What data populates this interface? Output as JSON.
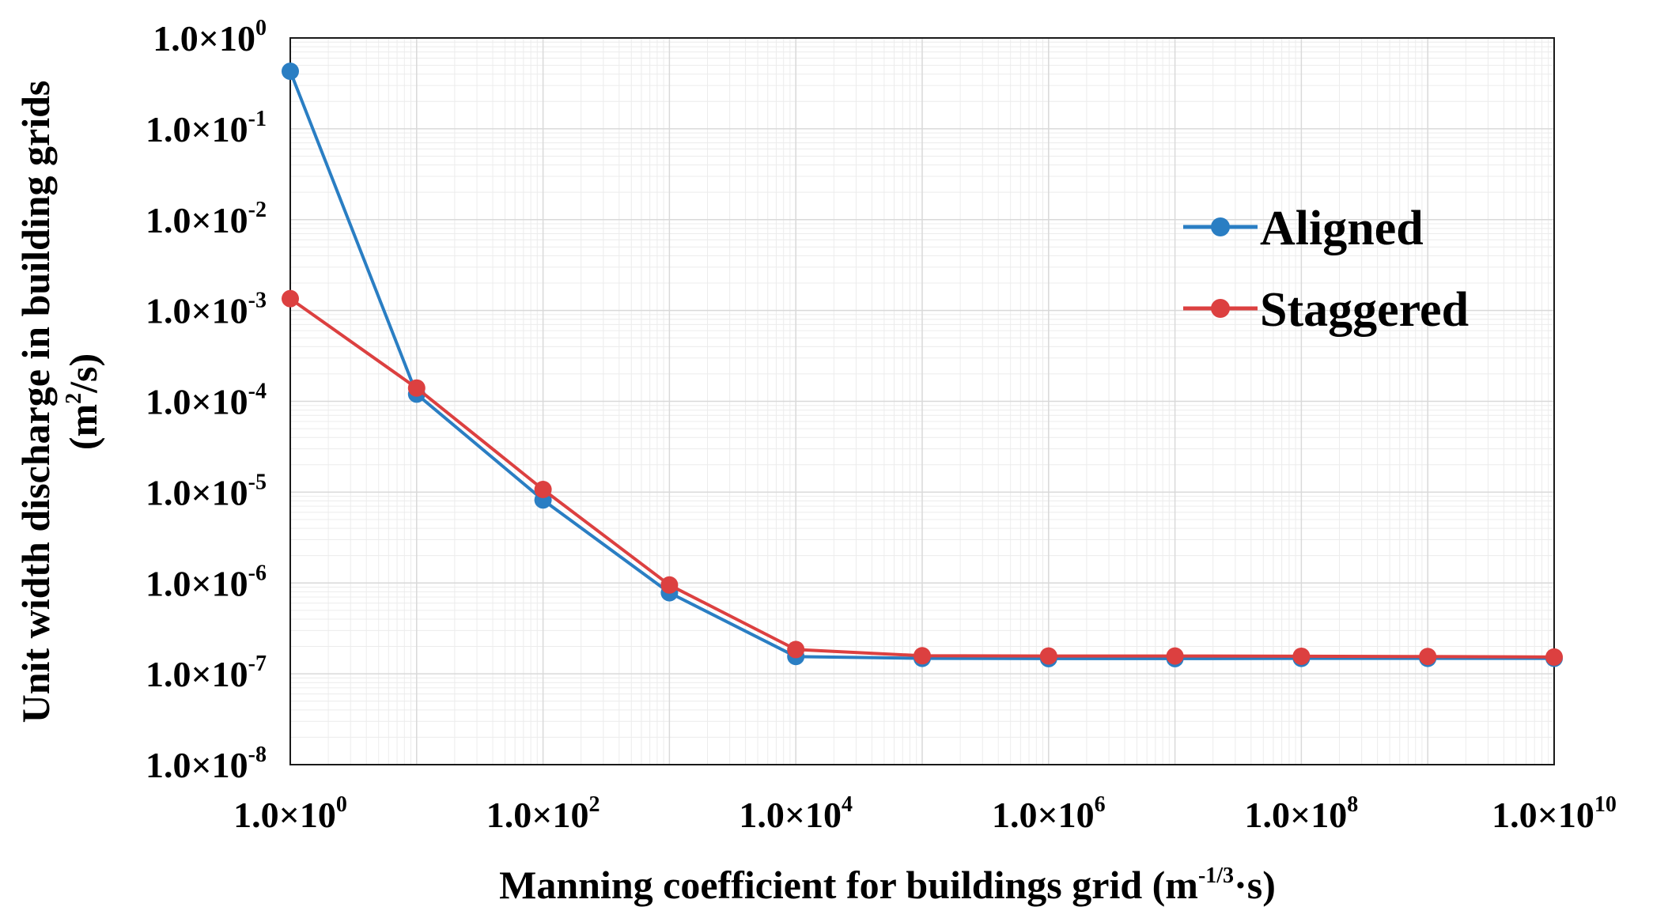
{
  "chart_data": {
    "type": "line",
    "title": "",
    "xlabel": {
      "main": "Manning coefficient for buildings grid (m",
      "sup": "-1/3",
      "tail": "·s)"
    },
    "ylabel": {
      "line1": "Unit width discharge in building grids",
      "line2_pre": "(m",
      "line2_sup": "2",
      "line2_post": "/s)"
    },
    "x_scale": "log",
    "y_scale": "log",
    "xlim": [
      1,
      10000000000
    ],
    "ylim": [
      1e-08,
      1
    ],
    "x_ticks": [
      {
        "value": 1,
        "mantissa": "1.0×10",
        "exp": "0"
      },
      {
        "value": 100,
        "mantissa": "1.0×10",
        "exp": "2"
      },
      {
        "value": 10000,
        "mantissa": "1.0×10",
        "exp": "4"
      },
      {
        "value": 1000000,
        "mantissa": "1.0×10",
        "exp": "6"
      },
      {
        "value": 100000000,
        "mantissa": "1.0×10",
        "exp": "8"
      },
      {
        "value": 10000000000,
        "mantissa": "1.0×10",
        "exp": "10"
      }
    ],
    "y_ticks": [
      {
        "value": 1,
        "mantissa": "1.0×10",
        "exp": "0"
      },
      {
        "value": 0.1,
        "mantissa": "1.0×10",
        "exp": "-1"
      },
      {
        "value": 0.01,
        "mantissa": "1.0×10",
        "exp": "-2"
      },
      {
        "value": 0.001,
        "mantissa": "1.0×10",
        "exp": "-3"
      },
      {
        "value": 0.0001,
        "mantissa": "1.0×10",
        "exp": "-4"
      },
      {
        "value": 1e-05,
        "mantissa": "1.0×10",
        "exp": "-5"
      },
      {
        "value": 1e-06,
        "mantissa": "1.0×10",
        "exp": "-6"
      },
      {
        "value": 1e-07,
        "mantissa": "1.0×10",
        "exp": "-7"
      },
      {
        "value": 1e-08,
        "mantissa": "1.0×10",
        "exp": "-8"
      }
    ],
    "grid": true,
    "legend_position": "top-right",
    "series": [
      {
        "name": "Aligned",
        "color": "#2a7ec3",
        "x": [
          1,
          10,
          100,
          1000,
          10000,
          100000,
          1000000,
          10000000,
          100000000,
          1000000000,
          10000000000
        ],
        "y": [
          0.43,
          0.00012,
          8.2e-06,
          7.8e-07,
          1.55e-07,
          1.48e-07,
          1.47e-07,
          1.47e-07,
          1.48e-07,
          1.48e-07,
          1.48e-07
        ]
      },
      {
        "name": "Staggered",
        "color": "#dc4040",
        "x": [
          1,
          10,
          100,
          1000,
          10000,
          100000,
          1000000,
          10000000,
          100000000,
          1000000000,
          10000000000
        ],
        "y": [
          0.00135,
          0.00014,
          1.07e-05,
          9.5e-07,
          1.85e-07,
          1.58e-07,
          1.57e-07,
          1.57e-07,
          1.56e-07,
          1.55e-07,
          1.53e-07
        ]
      }
    ]
  }
}
